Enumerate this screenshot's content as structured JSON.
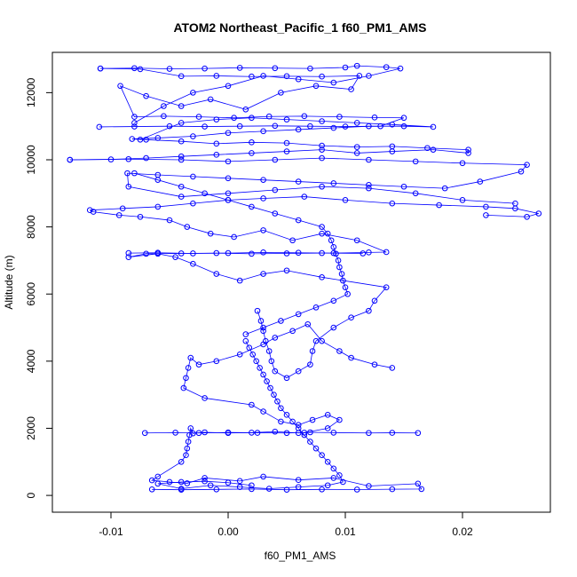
{
  "chart_data": {
    "type": "scatter",
    "title": "ATOM2 Northeast_Pacific_1 f60_PM1_AMS",
    "xlabel": "f60_PM1_AMS",
    "ylabel": "Altitude (m)",
    "xlim": [
      -0.015,
      0.0275
    ],
    "ylim": [
      -500,
      13200
    ],
    "x_ticks": [
      -0.01,
      0.0,
      0.01,
      0.02
    ],
    "x_tick_labels": [
      "-0.01",
      "0.00",
      "0.01",
      "0.02"
    ],
    "y_ticks": [
      0,
      2000,
      4000,
      6000,
      8000,
      10000,
      12000
    ],
    "y_tick_labels": [
      "0",
      "2000",
      "4000",
      "6000",
      "8000",
      "10000",
      "12000"
    ],
    "grid": false,
    "legend": "none",
    "marker": "open-circle",
    "connect_points": true,
    "color": "#0000ff",
    "series": [
      {
        "x": [
          -0.0065,
          -0.004,
          -0.001,
          0.002,
          0.005,
          0.008,
          0.011,
          0.014,
          0.0165,
          0.0162,
          0.012,
          0.009,
          0.006,
          0.003,
          0.001,
          -0.002,
          -0.0035,
          -0.005,
          -0.0065,
          -0.006,
          -0.004,
          -0.0036,
          -0.0035,
          -0.0034,
          -0.0033,
          -0.0032,
          -0.003,
          -0.002,
          0.0,
          0.002,
          0.004,
          0.006,
          0.007,
          0.009,
          0.012,
          0.014,
          0.0162
        ],
        "y": [
          180,
          170,
          180,
          190,
          170,
          180,
          175,
          185,
          190,
          350,
          280,
          520,
          460,
          560,
          430,
          520,
          360,
          400,
          450,
          560,
          1000,
          1200,
          1400,
          1600,
          1800,
          2000,
          1850,
          1880,
          1860,
          1870,
          1900,
          1860,
          1880,
          1870,
          1860,
          1865,
          1860
        ]
      },
      {
        "x": [
          -0.0071,
          -0.0045,
          -0.0025,
          0.0,
          0.0025,
          0.005,
          0.0065,
          0.0085,
          0.0095,
          0.0085,
          0.0072,
          0.006,
          0.0045,
          0.003,
          0.002,
          -0.002,
          -0.0038,
          -0.0036,
          -0.0034,
          -0.0032,
          -0.0025,
          -0.001,
          0.001,
          0.003,
          0.004,
          0.0055,
          0.0068,
          0.008,
          0.0095,
          0.0105,
          0.0125,
          0.014
        ],
        "y": [
          1860,
          1870,
          1860,
          1875,
          1865,
          1860,
          1870,
          2000,
          2250,
          2400,
          2250,
          2100,
          2200,
          2500,
          2700,
          2900,
          3200,
          3500,
          3800,
          4100,
          3900,
          4000,
          4200,
          4500,
          4700,
          4900,
          5100,
          4600,
          4300,
          4100,
          3900,
          3800
        ]
      },
      {
        "x": [
          0.0025,
          0.0028,
          0.003,
          0.0032,
          0.0035,
          0.0037,
          0.004,
          0.005,
          0.006,
          0.007,
          0.0072,
          0.0075,
          0.009,
          0.0105,
          0.012,
          0.0125,
          0.0135,
          0.008,
          0.005,
          0.003,
          0.001,
          -0.001,
          -0.003,
          -0.0045,
          -0.006,
          -0.0085,
          -0.007,
          -0.004,
          -0.001,
          0.002,
          0.005,
          0.008,
          0.0115
        ],
        "y": [
          5500,
          5200,
          4900,
          4600,
          4300,
          4000,
          3700,
          3500,
          3700,
          3900,
          4300,
          4600,
          5000,
          5300,
          5500,
          5800,
          6200,
          6500,
          6700,
          6600,
          6400,
          6600,
          6900,
          7100,
          7200,
          7100,
          7200,
          7210,
          7220,
          7200,
          7210,
          7220,
          7210
        ]
      },
      {
        "x": [
          -0.0085,
          -0.006,
          -0.003,
          0.0,
          0.003,
          0.006,
          0.009,
          0.012,
          0.0135,
          0.011,
          0.008,
          0.0055,
          0.003,
          0.0005,
          -0.0015,
          -0.0035,
          -0.005,
          -0.0075,
          -0.0093,
          -0.0115,
          -0.0118,
          -0.009,
          -0.006,
          -0.003,
          0.0,
          0.003,
          0.0065,
          0.01,
          0.014,
          0.018,
          0.022,
          0.0245,
          0.0265,
          0.0255,
          0.022
        ],
        "y": [
          7220,
          7230,
          7210,
          7220,
          7240,
          7230,
          7220,
          7240,
          7250,
          7600,
          7800,
          7600,
          7900,
          7700,
          7800,
          8000,
          8200,
          8300,
          8350,
          8450,
          8500,
          8550,
          8600,
          8700,
          8800,
          8850,
          8900,
          8800,
          8700,
          8650,
          8600,
          8550,
          8400,
          8300,
          8350
        ]
      },
      {
        "x": [
          0.0245,
          0.02,
          0.016,
          0.012,
          0.008,
          0.004,
          0.0,
          -0.004,
          -0.0085,
          -0.0086,
          -0.006,
          -0.003,
          0.0,
          0.003,
          0.006,
          0.009,
          0.012,
          0.015,
          0.0185,
          0.0215,
          0.025,
          0.0255,
          0.02,
          0.016,
          0.012,
          0.008,
          0.004,
          0.0,
          -0.004,
          -0.0085,
          -0.0135
        ],
        "y": [
          8700,
          8800,
          9000,
          9150,
          9200,
          9100,
          9000,
          8900,
          9200,
          9600,
          9550,
          9500,
          9450,
          9400,
          9350,
          9300,
          9250,
          9200,
          9150,
          9350,
          9650,
          9850,
          9900,
          9950,
          10000,
          10050,
          10000,
          9950,
          10000,
          10020,
          10000
        ]
      },
      {
        "x": [
          -0.0135,
          -0.01,
          -0.007,
          -0.004,
          -0.001,
          0.002,
          0.005,
          0.008,
          0.011,
          0.014,
          0.0175,
          0.0205,
          0.0205,
          0.017,
          0.014,
          0.011,
          0.008,
          0.005,
          0.002,
          -0.001,
          -0.004,
          -0.007,
          -0.0082,
          -0.006,
          -0.003,
          0.0,
          0.003,
          0.006,
          0.009,
          0.012,
          0.015,
          0.0175,
          0.014,
          0.011,
          0.008,
          0.005,
          0.002,
          -0.001,
          -0.004,
          -0.0075
        ],
        "y": [
          10000,
          10010,
          10050,
          10100,
          10150,
          10200,
          10250,
          10300,
          10200,
          10250,
          10300,
          10200,
          10300,
          10350,
          10400,
          10380,
          10420,
          10500,
          10520,
          10480,
          10550,
          10600,
          10620,
          10650,
          10700,
          10800,
          10850,
          10900,
          10950,
          11000,
          11000,
          10980,
          11050,
          11100,
          11150,
          11200,
          11250,
          11200,
          11100,
          10600
        ]
      },
      {
        "x": [
          -0.011,
          -0.008,
          -0.005,
          -0.002,
          0.001,
          0.004,
          0.007,
          0.01,
          0.013,
          0.015,
          0.0125,
          0.0095,
          0.0065,
          0.0035,
          0.0005,
          -0.0025,
          -0.0055,
          -0.008,
          -0.0092,
          -0.007,
          -0.004,
          -0.0015,
          0.0015,
          0.0045,
          0.0075,
          0.0105,
          0.0112,
          0.008,
          0.005,
          0.002,
          -0.001,
          -0.004,
          -0.0075,
          -0.0109
        ],
        "y": [
          10980,
          10990,
          11000,
          10990,
          11000,
          11010,
          11000,
          10990,
          11000,
          11250,
          11260,
          11280,
          11300,
          11290,
          11250,
          11280,
          11300,
          11280,
          12200,
          11900,
          11600,
          11800,
          11500,
          12000,
          12200,
          12100,
          12500,
          12480,
          12490,
          12480,
          12500,
          12490,
          12700,
          12720
        ]
      },
      {
        "x": [
          -0.0109,
          -0.008,
          -0.005,
          -0.002,
          0.001,
          0.004,
          0.007,
          0.01,
          0.011,
          0.0135,
          0.0147,
          0.012,
          0.009,
          0.006,
          0.003,
          0.0,
          -0.003,
          -0.0055,
          -0.008
        ],
        "y": [
          12720,
          12730,
          12710,
          12720,
          12740,
          12730,
          12720,
          12750,
          12800,
          12760,
          12720,
          12500,
          12300,
          12400,
          12500,
          12200,
          12000,
          11600,
          11100
        ]
      },
      {
        "x": [
          -0.008,
          -0.006,
          -0.004,
          -0.002,
          0.0,
          0.002,
          0.004,
          0.006,
          0.008,
          0.0085,
          0.0088,
          0.009,
          0.0092,
          0.0094,
          0.0095,
          0.0097,
          0.0098,
          0.01,
          0.0102,
          0.009,
          0.0075,
          0.006,
          0.0045,
          0.003,
          0.0015
        ],
        "y": [
          9600,
          9400,
          9200,
          9000,
          8800,
          8600,
          8400,
          8200,
          8000,
          7800,
          7600,
          7400,
          7200,
          7000,
          6800,
          6600,
          6400,
          6200,
          6000,
          5800,
          5600,
          5400,
          5200,
          5000,
          4800
        ]
      },
      {
        "x": [
          0.0015,
          0.0018,
          0.0021,
          0.0024,
          0.0027,
          0.003,
          0.0033,
          0.0036,
          0.0039,
          0.0042,
          0.0045,
          0.005,
          0.0055,
          0.006,
          0.0065,
          0.007,
          0.0075,
          0.008,
          0.0085,
          0.009,
          0.0095,
          0.0098,
          0.0085,
          0.006,
          0.0035,
          0.001,
          -0.0015,
          -0.004,
          -0.006,
          -0.004,
          -0.002,
          0.0,
          0.002
        ],
        "y": [
          4600,
          4400,
          4200,
          4000,
          3800,
          3600,
          3400,
          3200,
          3000,
          2800,
          2600,
          2400,
          2200,
          2000,
          1800,
          1600,
          1400,
          1200,
          1000,
          800,
          600,
          400,
          300,
          250,
          200,
          250,
          300,
          200,
          350,
          400,
          420,
          380,
          300
        ]
      }
    ]
  }
}
